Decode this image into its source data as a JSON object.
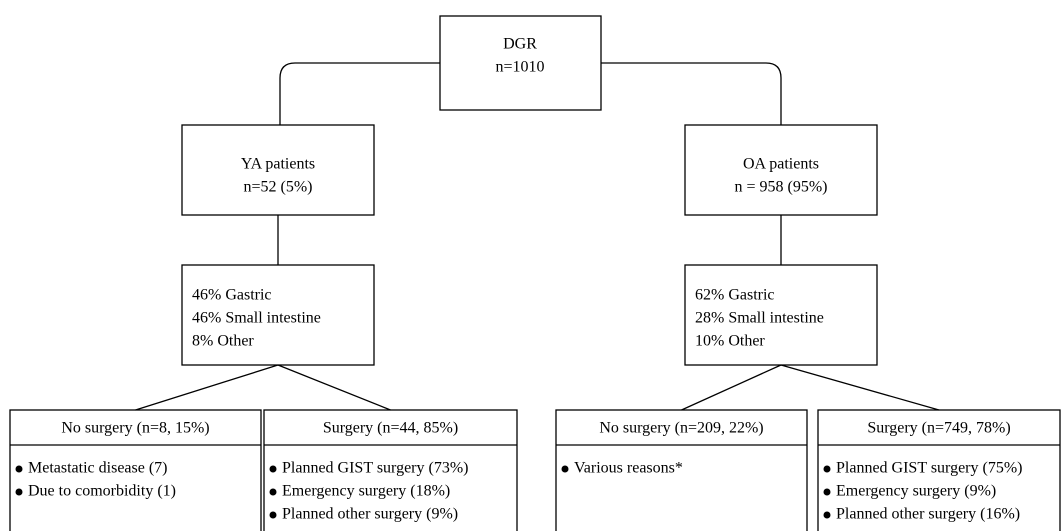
{
  "root": {
    "title": "DGR",
    "n": "n=1010"
  },
  "groups": [
    {
      "title": "YA patients",
      "n": "n=52 (5%)",
      "sites": [
        "46% Gastric",
        "46% Small intestine",
        "8% Other"
      ],
      "outcomes": [
        {
          "header": "No surgery (n=8, 15%)",
          "items": [
            "Metastatic disease (7)",
            "Due to comorbidity (1)"
          ]
        },
        {
          "header": "Surgery (n=44, 85%)",
          "items": [
            "Planned GIST surgery (73%)",
            "Emergency surgery (18%)",
            "Planned other surgery (9%)"
          ]
        }
      ]
    },
    {
      "title": "OA patients",
      "n": "n = 958 (95%)",
      "sites": [
        "62% Gastric",
        "28% Small intestine",
        "10% Other"
      ],
      "outcomes": [
        {
          "header": "No surgery (n=209, 22%)",
          "items": [
            "Various reasons*"
          ]
        },
        {
          "header": "Surgery (n=749, 78%)",
          "items": [
            "Planned GIST surgery (75%)",
            "Emergency surgery (9%)",
            "Planned other surgery (16%)"
          ]
        }
      ]
    }
  ]
}
